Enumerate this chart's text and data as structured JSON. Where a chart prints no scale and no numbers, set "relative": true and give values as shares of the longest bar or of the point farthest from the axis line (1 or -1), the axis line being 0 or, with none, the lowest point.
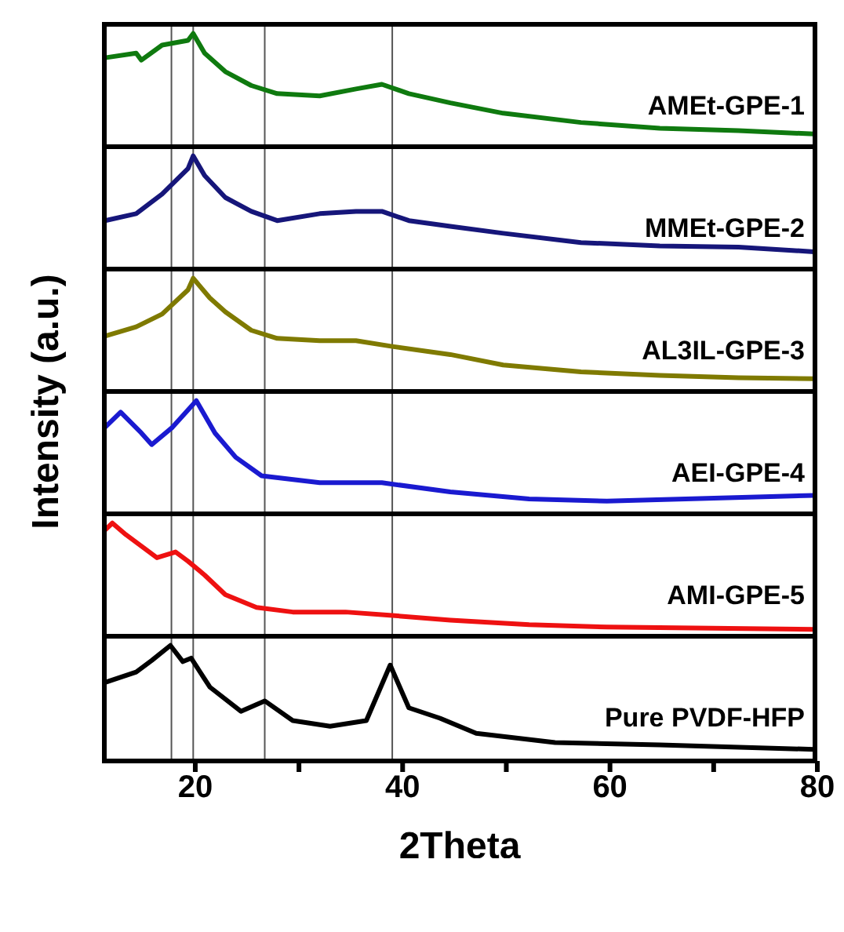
{
  "chart_data": [
    {
      "type": "line",
      "relative": true,
      "ylabel": "Intensity (a.u.)",
      "xlim": [
        11,
        80
      ],
      "tick_labels": false,
      "ref_lines": [
        {
          "axis": "x",
          "value": 17.7
        },
        {
          "axis": "x",
          "value": 19.8
        },
        {
          "axis": "x",
          "value": 26.7
        },
        {
          "axis": "x",
          "value": 39
        }
      ],
      "series": [
        {
          "name": "AMEt-GPE-1",
          "color": "#0f7a0f",
          "x": [
            11.3,
            14.3,
            14.8,
            16.8,
            19.3,
            19.8,
            20.9,
            22.9,
            25.4,
            27.9,
            32,
            35.5,
            38,
            40.6,
            44.6,
            49.7,
            57.2,
            64.8,
            72.4,
            79.7
          ],
          "values": [
            0.79,
            0.83,
            0.77,
            0.9,
            0.94,
            1,
            0.83,
            0.67,
            0.55,
            0.48,
            0.46,
            0.52,
            0.56,
            0.48,
            0.4,
            0.31,
            0.23,
            0.18,
            0.16,
            0.13
          ]
        }
      ]
    },
    {
      "type": "line",
      "relative": true,
      "xlim": [
        11,
        80
      ],
      "tick_labels": false,
      "ref_lines": [
        {
          "axis": "x",
          "value": 17.7
        },
        {
          "axis": "x",
          "value": 19.8
        },
        {
          "axis": "x",
          "value": 26.7
        },
        {
          "axis": "x",
          "value": 39
        }
      ],
      "series": [
        {
          "name": "MMEt-GPE-2",
          "color": "#16167a",
          "x": [
            11.3,
            14.3,
            16.8,
            19.3,
            19.8,
            20.9,
            22.9,
            25.4,
            27.9,
            32,
            35.5,
            38,
            40.6,
            44.6,
            49.7,
            57.2,
            64.8,
            72.4,
            79.7
          ],
          "values": [
            0.44,
            0.5,
            0.67,
            0.89,
            1,
            0.83,
            0.64,
            0.52,
            0.44,
            0.5,
            0.52,
            0.52,
            0.44,
            0.39,
            0.33,
            0.25,
            0.22,
            0.21,
            0.17
          ]
        }
      ]
    },
    {
      "type": "line",
      "relative": true,
      "xlim": [
        11,
        80
      ],
      "tick_labels": false,
      "ref_lines": [
        {
          "axis": "x",
          "value": 17.7
        },
        {
          "axis": "x",
          "value": 19.8
        },
        {
          "axis": "x",
          "value": 26.7
        },
        {
          "axis": "x",
          "value": 39
        }
      ],
      "series": [
        {
          "name": "AL3IL-GPE-3",
          "color": "#7f7a00",
          "x": [
            11.3,
            14.3,
            16.8,
            19.3,
            19.8,
            21.4,
            22.9,
            25.4,
            27.9,
            32,
            35.5,
            39,
            44.6,
            49.7,
            57.2,
            64.8,
            72.4,
            79.7
          ],
          "values": [
            0.5,
            0.58,
            0.69,
            0.9,
            1,
            0.83,
            0.71,
            0.55,
            0.48,
            0.46,
            0.46,
            0.41,
            0.34,
            0.25,
            0.19,
            0.16,
            0.14,
            0.13
          ]
        }
      ]
    },
    {
      "type": "line",
      "relative": true,
      "xlim": [
        11,
        80
      ],
      "tick_labels": false,
      "ref_lines": [
        {
          "axis": "x",
          "value": 17.7
        },
        {
          "axis": "x",
          "value": 19.8
        },
        {
          "axis": "x",
          "value": 26.7
        },
        {
          "axis": "x",
          "value": 39
        }
      ],
      "series": [
        {
          "name": "AEI-GPE-4",
          "color": "#1a1ad0",
          "x": [
            11.3,
            12.8,
            14.8,
            15.8,
            17.8,
            19.8,
            20.1,
            21.9,
            23.9,
            26.4,
            32,
            38,
            44.6,
            52.2,
            59.7,
            67.3,
            79.7
          ],
          "values": [
            0.77,
            0.9,
            0.72,
            0.62,
            0.77,
            0.97,
            1,
            0.72,
            0.51,
            0.35,
            0.29,
            0.29,
            0.21,
            0.15,
            0.13,
            0.15,
            0.18
          ]
        }
      ]
    },
    {
      "type": "line",
      "relative": true,
      "xlim": [
        11,
        80
      ],
      "tick_labels": false,
      "ref_lines": [
        {
          "axis": "x",
          "value": 17.7
        },
        {
          "axis": "x",
          "value": 19.8
        },
        {
          "axis": "x",
          "value": 26.7
        },
        {
          "axis": "x",
          "value": 39
        }
      ],
      "series": [
        {
          "name": "AMI-GPE-5",
          "color": "#ee1111",
          "x": [
            11.3,
            12,
            13.3,
            14.8,
            16.3,
            18.1,
            19.3,
            20.9,
            22.9,
            25.9,
            29.4,
            34.5,
            39,
            44.6,
            52.2,
            59.7,
            69.8,
            79.7
          ],
          "values": [
            0.94,
            1,
            0.9,
            0.8,
            0.7,
            0.75,
            0.67,
            0.55,
            0.38,
            0.27,
            0.23,
            0.23,
            0.2,
            0.16,
            0.12,
            0.1,
            0.09,
            0.08
          ]
        }
      ]
    },
    {
      "type": "line",
      "relative": true,
      "xlabel": "2Theta",
      "xlim": [
        11,
        80
      ],
      "xticks": [
        20,
        {
          "value": 30,
          "label": null
        },
        40,
        {
          "value": 50,
          "label": null
        },
        60,
        {
          "value": 70,
          "label": null
        },
        80
      ],
      "tick_labels": "x",
      "ref_lines": [
        {
          "axis": "x",
          "value": 17.7
        },
        {
          "axis": "x",
          "value": 19.8
        },
        {
          "axis": "x",
          "value": 26.7
        },
        {
          "axis": "x",
          "value": 39
        }
      ],
      "series": [
        {
          "name": "Pure PVDF-HFP",
          "color": "#000000",
          "x": [
            11.3,
            14.3,
            15.8,
            17.6,
            18.8,
            19.6,
            21.4,
            24.4,
            26.7,
            29.4,
            33,
            36.5,
            38.8,
            40.6,
            43.6,
            47.1,
            54.7,
            64.8,
            79.7
          ],
          "values": [
            0.68,
            0.77,
            0.87,
            1,
            0.86,
            0.89,
            0.64,
            0.43,
            0.52,
            0.35,
            0.3,
            0.35,
            0.83,
            0.46,
            0.37,
            0.24,
            0.16,
            0.14,
            0.1
          ]
        }
      ]
    }
  ]
}
